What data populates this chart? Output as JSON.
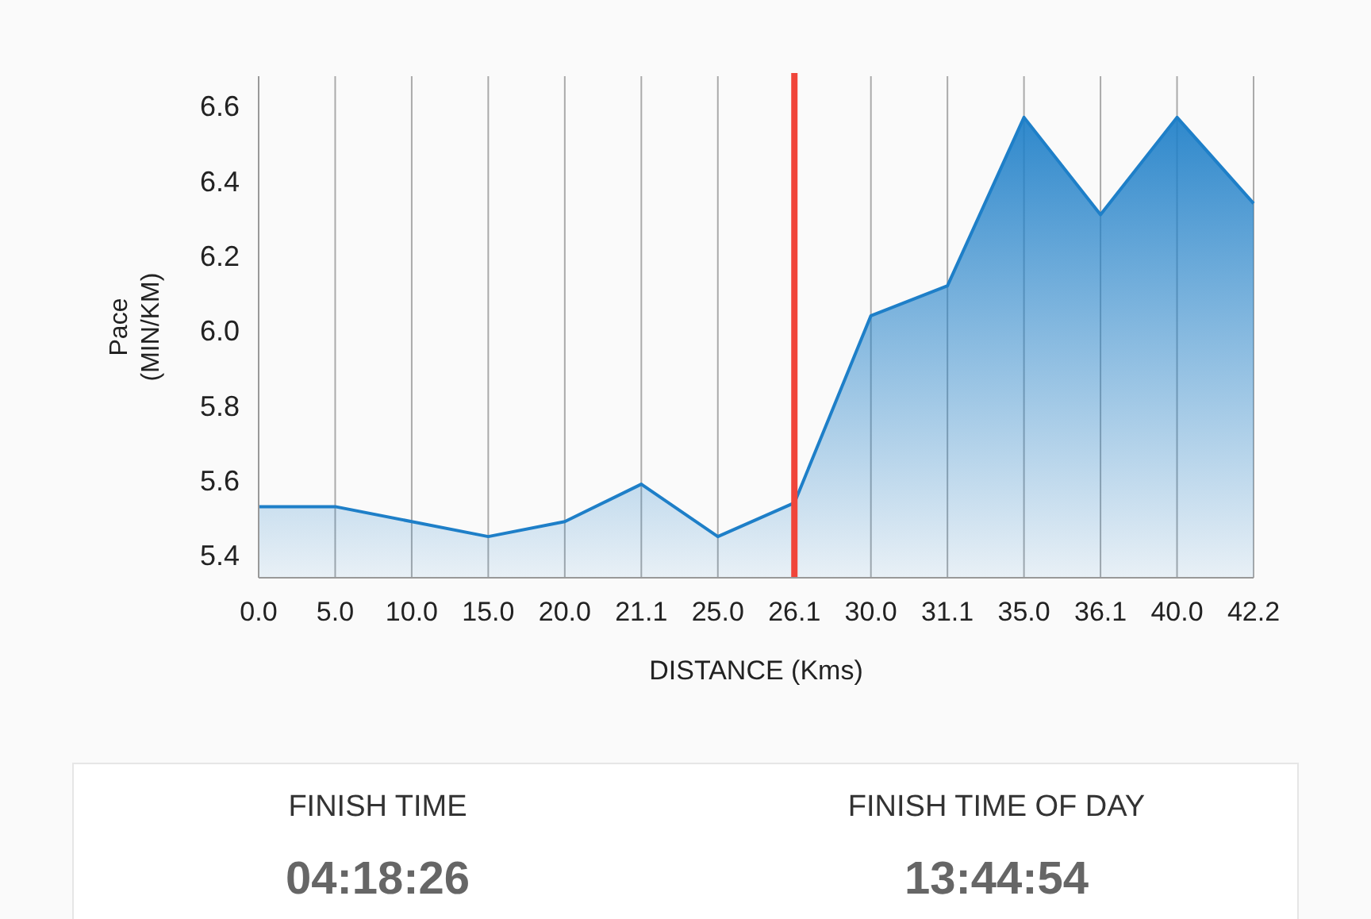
{
  "chart_data": {
    "type": "area",
    "xlabel": "DISTANCE (Kms)",
    "ylabel": "Pace\n(MIN/KM)",
    "categories": [
      "0.0",
      "5.0",
      "10.0",
      "15.0",
      "20.0",
      "21.1",
      "25.0",
      "26.1",
      "30.0",
      "31.1",
      "35.0",
      "36.1",
      "40.0",
      "42.2"
    ],
    "series": [
      {
        "color": "#1e7fc8",
        "values": [
          5.53,
          5.53,
          5.49,
          5.45,
          5.49,
          5.59,
          5.45,
          5.54,
          6.04,
          6.12,
          6.57,
          6.31,
          6.57,
          6.34
        ]
      }
    ],
    "ylim": [
      5.34,
      6.68
    ],
    "yticks": [
      5.4,
      5.6,
      5.8,
      {
        "value": 6,
        "label": "6.0"
      },
      6.2,
      6.4,
      6.6
    ],
    "grid": "x",
    "ref_lines": [
      {
        "axis": "x",
        "value": "26.1",
        "color": "#f0453a"
      }
    ],
    "annotations": [
      "FINISH TIME",
      "04:18:26",
      "FINISH TIME OF DAY",
      "13:44:54"
    ]
  }
}
